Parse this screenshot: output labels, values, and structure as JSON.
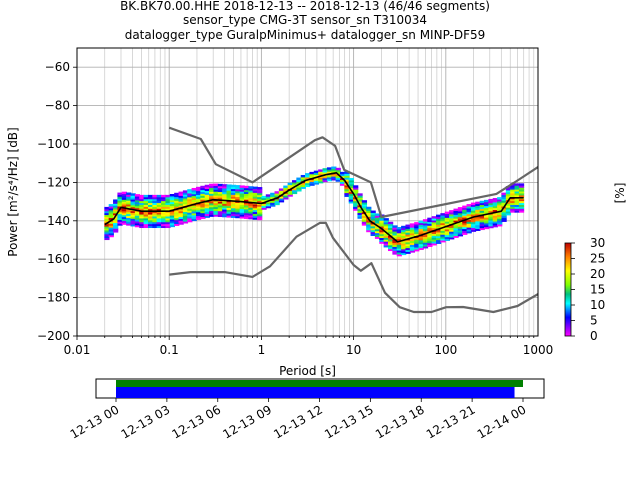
{
  "title": {
    "line1": "BK.BK70.00.HHE   2018-12-13 -- 2018-12-13  (46/46 segments)",
    "line2": "sensor_type CMG-3T sensor_sn T310034",
    "line3": "datalogger_type GuralpMinimus+ datalogger_sn MINP-DF59"
  },
  "chart_data": [
    {
      "type": "heatmap",
      "title": "BK.BK70.00.HHE   2018-12-13 -- 2018-12-13  (46/46 segments)",
      "xlabel": "Period [s]",
      "ylabel": "Power [m²/s⁴/Hz] [dB]",
      "xscale": "log",
      "xlim": [
        0.01,
        1000
      ],
      "ylim": [
        -200,
        -50
      ],
      "x_ticks": [
        "0.01",
        "0.1",
        "1",
        "10",
        "100",
        "1000"
      ],
      "y_ticks": [
        "−200",
        "−180",
        "−160",
        "−140",
        "−120",
        "−100",
        "−80",
        "−60"
      ],
      "grid": true,
      "colorbar": {
        "label": "[%]",
        "range": [
          0,
          30
        ],
        "ticks": [
          "0",
          "5",
          "10",
          "15",
          "20",
          "25",
          "30"
        ]
      },
      "series": [
        {
          "role": "high-noise-model",
          "color": "#666666",
          "points": [
            [
              0.1,
              -91.5
            ],
            [
              0.22,
              -97.4
            ],
            [
              0.32,
              -110.5
            ],
            [
              0.8,
              -120
            ],
            [
              3.8,
              -98
            ],
            [
              4.6,
              -96.5
            ],
            [
              6.3,
              -101
            ],
            [
              7.9,
              -113.5
            ],
            [
              15.4,
              -120
            ],
            [
              20,
              -138
            ],
            [
              354,
              -126
            ],
            [
              600,
              -119
            ],
            [
              1000,
              -112
            ]
          ]
        },
        {
          "role": "low-noise-model",
          "color": "#666666",
          "points": [
            [
              0.1,
              -168
            ],
            [
              0.17,
              -166.7
            ],
            [
              0.4,
              -166.7
            ],
            [
              0.8,
              -169.2
            ],
            [
              1.24,
              -163.7
            ],
            [
              2.4,
              -148.3
            ],
            [
              4.3,
              -141.1
            ],
            [
              5,
              -141.1
            ],
            [
              6,
              -149
            ],
            [
              10,
              -163
            ],
            [
              12,
              -166
            ],
            [
              15.6,
              -162.1
            ],
            [
              21.9,
              -177.5
            ],
            [
              31.6,
              -185
            ],
            [
              45,
              -187.5
            ],
            [
              70,
              -187.5
            ],
            [
              101,
              -185
            ],
            [
              154,
              -184.9
            ],
            [
              328,
              -187.5
            ],
            [
              600,
              -184.4
            ],
            [
              1000,
              -178.2
            ]
          ]
        },
        {
          "role": "mean-psd",
          "color": "#000000",
          "points": [
            [
              0.02,
              -142
            ],
            [
              0.025,
              -139
            ],
            [
              0.03,
              -133
            ],
            [
              0.05,
              -135
            ],
            [
              0.1,
              -135
            ],
            [
              0.2,
              -131
            ],
            [
              0.3,
              -129
            ],
            [
              0.6,
              -130
            ],
            [
              1,
              -131
            ],
            [
              1.5,
              -128
            ],
            [
              2,
              -124
            ],
            [
              3,
              -119
            ],
            [
              5,
              -116
            ],
            [
              6.5,
              -115
            ],
            [
              8,
              -119
            ],
            [
              10,
              -126
            ],
            [
              12,
              -133
            ],
            [
              15,
              -140
            ],
            [
              20,
              -144
            ],
            [
              30,
              -151
            ],
            [
              50,
              -148
            ],
            [
              100,
              -143
            ],
            [
              200,
              -138
            ],
            [
              400,
              -135
            ],
            [
              500,
              -128
            ],
            [
              700,
              -128
            ]
          ]
        }
      ]
    },
    {
      "type": "timeline",
      "xlim": [
        "12-13 00",
        "12-14 00"
      ],
      "x_ticks": [
        "12-13 00",
        "12-13 03",
        "12-13 06",
        "12-13 09",
        "12-13 12",
        "12-13 15",
        "12-13 18",
        "12-13 21",
        "12-14 00"
      ],
      "bars": [
        {
          "color": "#008000",
          "start_hours": 0,
          "end_hours": 24.0
        },
        {
          "color": "#0000ff",
          "start_hours": 0,
          "end_hours": 23.5
        }
      ]
    }
  ]
}
